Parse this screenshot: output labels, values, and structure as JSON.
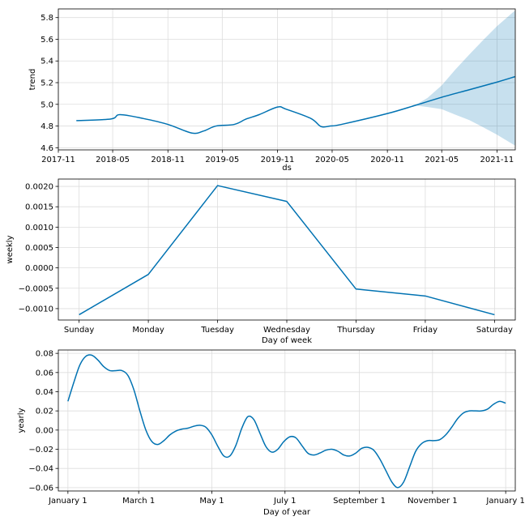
{
  "colors": {
    "line": "#0072B2",
    "band": "#0072B2",
    "grid": "#dddddd"
  },
  "chart_data": [
    {
      "type": "line",
      "xlabel": "ds",
      "ylabel": "trend",
      "x_type": "date",
      "xlim": [
        "2017-11-01",
        "2022-01-01"
      ],
      "ylim": [
        4.58,
        5.88
      ],
      "xticks": [
        "2017-11-01",
        "2018-05-01",
        "2018-11-01",
        "2019-05-01",
        "2019-11-01",
        "2020-05-01",
        "2020-11-01",
        "2021-05-01",
        "2021-11-01"
      ],
      "xtick_labels": [
        "2017-11",
        "2018-05",
        "2018-11",
        "2019-05",
        "2019-11",
        "2020-05",
        "2020-11",
        "2021-05",
        "2021-11"
      ],
      "yticks": [
        4.6,
        4.8,
        5.0,
        5.2,
        5.4,
        5.6,
        5.8
      ],
      "ytick_labels": [
        "4.6",
        "4.8",
        "5.0",
        "5.2",
        "5.4",
        "5.6",
        "5.8"
      ],
      "grid": true,
      "series": [
        {
          "x": [
            "2017-12-31",
            "2018-04-25",
            "2018-05-25",
            "2018-08-10",
            "2018-11-01",
            "2019-01-20",
            "2019-03-01",
            "2019-04-10",
            "2019-06-10",
            "2019-07-20",
            "2019-09-01",
            "2019-11-01",
            "2019-11-30",
            "2020-02-20",
            "2020-03-25",
            "2020-04-25",
            "2020-06-01",
            "2020-11-01",
            "2021-02-01",
            "2021-05-01",
            "2021-08-01",
            "2021-11-01",
            "2021-12-31"
          ],
          "y": [
            4.85,
            4.865,
            4.905,
            4.87,
            4.815,
            4.735,
            4.755,
            4.8,
            4.815,
            4.865,
            4.905,
            4.975,
            4.955,
            4.87,
            4.795,
            4.8,
            4.815,
            4.915,
            4.99,
            5.065,
            5.135,
            5.205,
            5.255
          ]
        }
      ],
      "uncertainty_band": {
        "x": [
          "2021-02-01",
          "2021-03-15",
          "2021-05-01",
          "2021-06-15",
          "2021-08-01",
          "2021-09-15",
          "2021-11-01",
          "2021-12-31"
        ],
        "lower": [
          4.99,
          4.975,
          4.955,
          4.905,
          4.855,
          4.79,
          4.72,
          4.62
        ],
        "upper": [
          4.99,
          5.06,
          5.175,
          5.32,
          5.46,
          5.59,
          5.72,
          5.865
        ]
      }
    },
    {
      "type": "line",
      "xlabel": "Day of week",
      "ylabel": "weekly",
      "categories": [
        "Sunday",
        "Monday",
        "Tuesday",
        "Wednesday",
        "Thursday",
        "Friday",
        "Saturday"
      ],
      "ylim": [
        -0.00128,
        0.00218
      ],
      "yticks": [
        -0.001,
        -0.0005,
        0.0,
        0.0005,
        0.001,
        0.0015,
        0.002
      ],
      "ytick_labels": [
        "−0.0010",
        "−0.0005",
        "0.0000",
        "0.0005",
        "0.0010",
        "0.0015",
        "0.0020"
      ],
      "grid": true,
      "series": [
        {
          "values": [
            -0.00115,
            -0.00016,
            0.00202,
            0.00163,
            -0.00052,
            -0.00069,
            -0.00115
          ]
        }
      ]
    },
    {
      "type": "line",
      "xlabel": "Day of year",
      "ylabel": "yearly",
      "xlim": [
        -8,
        373
      ],
      "xticks": [
        0,
        59,
        120,
        181,
        243,
        304,
        365
      ],
      "xtick_labels": [
        "January 1",
        "March 1",
        "May 1",
        "July 1",
        "September 1",
        "November 1",
        "January 1"
      ],
      "ylim": [
        -0.0635,
        0.0835
      ],
      "yticks": [
        -0.06,
        -0.04,
        -0.02,
        0.0,
        0.02,
        0.04,
        0.06,
        0.08
      ],
      "ytick_labels": [
        "−0.06",
        "−0.04",
        "−0.02",
        "0.00",
        "0.02",
        "0.04",
        "0.06",
        "0.08"
      ],
      "grid": true,
      "series": [
        {
          "x": [
            0,
            5,
            10,
            15,
            20,
            25,
            30,
            35,
            40,
            45,
            50,
            55,
            60,
            65,
            70,
            75,
            80,
            85,
            90,
            95,
            100,
            105,
            110,
            115,
            120,
            125,
            130,
            135,
            140,
            145,
            150,
            155,
            160,
            165,
            170,
            175,
            180,
            185,
            190,
            195,
            200,
            205,
            210,
            215,
            220,
            225,
            230,
            235,
            240,
            245,
            250,
            255,
            260,
            265,
            270,
            275,
            280,
            285,
            290,
            295,
            300,
            305,
            310,
            315,
            320,
            325,
            330,
            335,
            340,
            345,
            350,
            355,
            360,
            365
          ],
          "y": [
            0.03,
            0.05,
            0.068,
            0.077,
            0.078,
            0.073,
            0.066,
            0.062,
            0.062,
            0.062,
            0.057,
            0.042,
            0.02,
            0.0,
            -0.012,
            -0.015,
            -0.011,
            -0.005,
            -0.001,
            0.001,
            0.002,
            0.004,
            0.005,
            0.003,
            -0.005,
            -0.017,
            -0.027,
            -0.027,
            -0.016,
            0.002,
            0.014,
            0.011,
            -0.003,
            -0.017,
            -0.023,
            -0.02,
            -0.012,
            -0.007,
            -0.008,
            -0.016,
            -0.024,
            -0.026,
            -0.024,
            -0.021,
            -0.02,
            -0.022,
            -0.026,
            -0.027,
            -0.024,
            -0.019,
            -0.018,
            -0.021,
            -0.03,
            -0.042,
            -0.054,
            -0.06,
            -0.054,
            -0.038,
            -0.022,
            -0.014,
            -0.011,
            -0.011,
            -0.01,
            -0.005,
            0.003,
            0.012,
            0.018,
            0.02,
            0.02,
            0.02,
            0.022,
            0.027,
            0.03,
            0.028
          ]
        }
      ]
    }
  ]
}
